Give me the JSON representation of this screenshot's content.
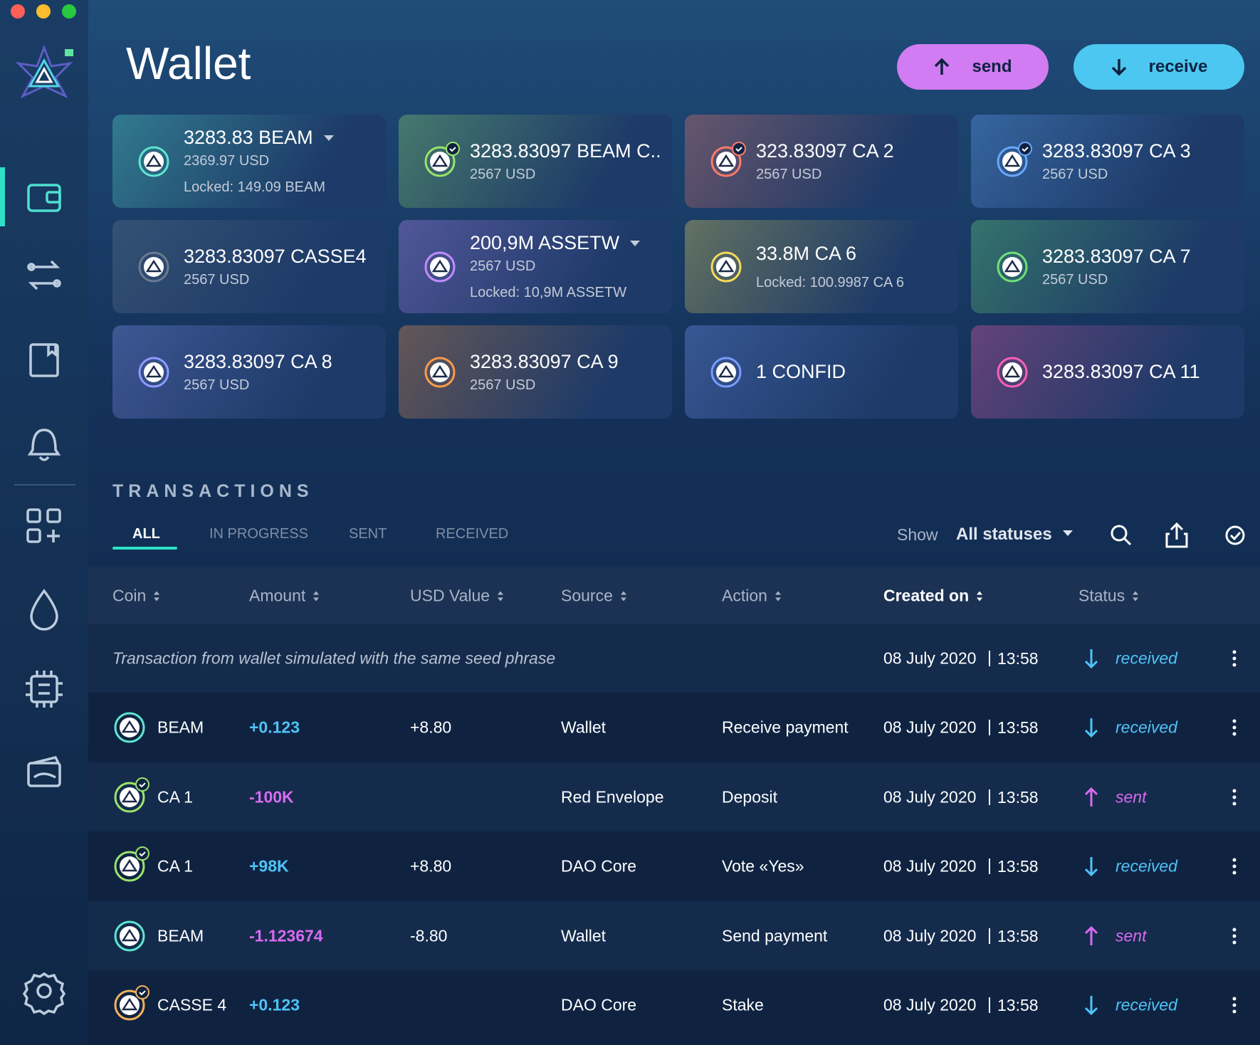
{
  "header": {
    "title": "Wallet",
    "send": "send",
    "receive": "receive"
  },
  "assets": [
    {
      "amount": "3283.83 BEAM",
      "usd": "2369.97 USD",
      "locked": "Locked: 149.09 BEAM",
      "color": "#5ee6d0",
      "dropdown": true
    },
    {
      "amount": "3283.83097 BEAM C..",
      "usd": "2567 USD",
      "color": "#9be36b",
      "verified": true
    },
    {
      "amount": "323.83097 CA 2",
      "usd": "2567 USD",
      "color": "#ff7a6a",
      "verified": true
    },
    {
      "amount": "3283.83097 CA 3",
      "usd": "2567 USD",
      "color": "#6aa8ff",
      "verified": true
    },
    {
      "amount": "3283.83097 CASSE4",
      "usd": "2567 USD",
      "color": "#6b7a90"
    },
    {
      "amount": "200,9M ASSETW",
      "usd": "2567 USD",
      "locked": "Locked: 10,9M ASSETW",
      "color": "#c28cff",
      "dropdown": true
    },
    {
      "amount": "33.8M CA 6",
      "locked": "Locked: 100.9987 CA 6",
      "color": "#f5dc5a"
    },
    {
      "amount": "3283.83097 CA 7",
      "usd": "2567 USD",
      "color": "#6ee07a"
    },
    {
      "amount": "3283.83097 CA 8",
      "usd": "2567 USD",
      "color": "#8f9bff"
    },
    {
      "amount": "3283.83097 CA 9",
      "usd": "2567 USD",
      "color": "#ff9a4a"
    },
    {
      "amount": "1 CONFID",
      "color": "#7a9cff"
    },
    {
      "amount": "3283.83097 CA 11",
      "color": "#ff5fb5"
    }
  ],
  "transactions": {
    "title": "TRANSACTIONS",
    "tabs": [
      "ALL",
      "IN PROGRESS",
      "SENT",
      "RECEIVED"
    ],
    "active_tab": 0,
    "filter_label": "Show",
    "filter_value": "All statuses",
    "columns": [
      "Coin",
      "Amount",
      "USD Value",
      "Source",
      "Action",
      "Created on",
      "Status"
    ],
    "sorted_column": 5,
    "rows": [
      {
        "comment": "Transaction from wallet simulated with the same seed phrase",
        "date": "08 July 2020",
        "time": "13:58",
        "status": "received"
      },
      {
        "coin": "BEAM",
        "color": "#5ee6d0",
        "amount": "+0.123",
        "usd": "+8.80",
        "source": "Wallet",
        "action": "Receive payment",
        "date": "08 July 2020",
        "time": "13:58",
        "status": "received"
      },
      {
        "coin": "CA 1",
        "color": "#9be36b",
        "verified": true,
        "amount": "-100K",
        "source": "Red Envelope",
        "action": "Deposit",
        "date": "08 July 2020",
        "time": "13:58",
        "status": "sent"
      },
      {
        "coin": "CA 1",
        "color": "#9be36b",
        "verified": true,
        "amount": "+98K",
        "usd": "+8.80",
        "source": "DAO Core",
        "action": "Vote «Yes»",
        "date": "08 July 2020",
        "time": "13:58",
        "status": "received"
      },
      {
        "coin": "BEAM",
        "color": "#5ee6d0",
        "amount": "-1.123674",
        "usd": "-8.80",
        "source": "Wallet",
        "action": "Send payment",
        "date": "08 July 2020",
        "time": "13:58",
        "status": "sent"
      },
      {
        "coin": "CASSE 4",
        "color": "#f5b05a",
        "verified": true,
        "amount": "+0.123",
        "source": "DAO Core",
        "action": "Stake",
        "date": "08 July 2020",
        "time": "13:58",
        "status": "received"
      }
    ]
  }
}
